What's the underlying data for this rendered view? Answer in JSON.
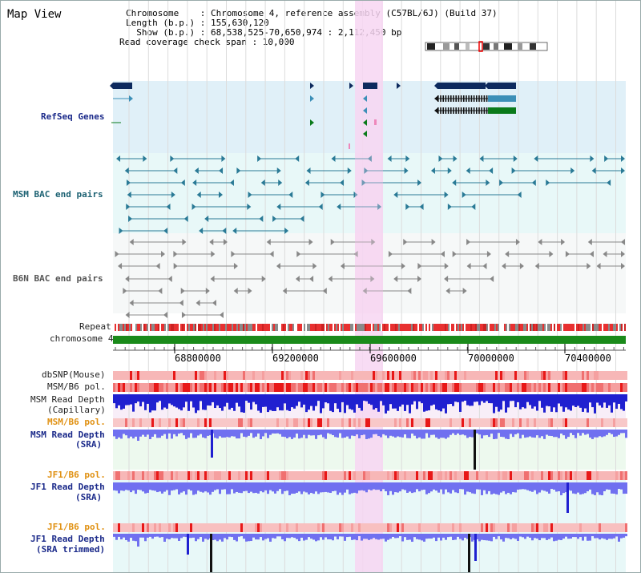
{
  "app": {
    "title": "Map View"
  },
  "header": {
    "line1": "Chromosome    : Chromosome 4, reference assembly (C57BL/6J) (Build 37)",
    "line2": "Length (b.p.) : 155,630,120",
    "line3": "  Show (b.p.) : 68,538,525-70,650,974 : 2,112,450 bp",
    "line4": "Read coverage check span : 10,000"
  },
  "tracks": {
    "refseq": "RefSeq Genes",
    "msm_bac": "MSM BAC end pairs",
    "b6n_bac": "B6N BAC end pairs",
    "repeat": "Repeat",
    "chromosome": "chromosome 4",
    "dbsnp": "dbSNP(Mouse)",
    "msm_b6_pol_1": "MSM/B6 pol.",
    "msm_read_depth_cap_1": "MSM Read Depth",
    "msm_read_depth_cap_2": "(Capillary)",
    "msm_b6_pol_2": "MSM/B6 pol.",
    "msm_read_depth_sra_1": "MSM Read Depth",
    "msm_read_depth_sra_2": "(SRA)",
    "jf1_b6_pol_1": "JF1/B6 pol.",
    "jf1_read_depth_sra_1": "JF1 Read Depth",
    "jf1_read_depth_sra_2": "(SRA)",
    "jf1_b6_pol_2": "JF1/B6 pol.",
    "jf1_read_depth_trim_1": "JF1 Read Depth",
    "jf1_read_depth_trim_2": "(SRA trimmed)"
  },
  "axis": {
    "ticks": [
      "68800000",
      "69200000",
      "69600000",
      "70000000",
      "70400000"
    ]
  },
  "colors": {
    "refseq_bg": "#e0f0f8",
    "bac_bg": "#e8f8f8",
    "highlight": "#f7d6f2",
    "gene_navy": "#0d2a5e",
    "gene_teal": "#3c8fb7",
    "gene_green": "#0a7a1a",
    "bac_teal": "#2a7a96",
    "bac_gray": "#888888",
    "repeat_red": "#e83030",
    "repeat_gray": "#8a8a8a",
    "chrom_green": "#1a8a1a",
    "pol_red": "#f07070",
    "depth_blue": "#2020d0",
    "depth_light": "#7070f0",
    "depth_black": "#111111"
  }
}
